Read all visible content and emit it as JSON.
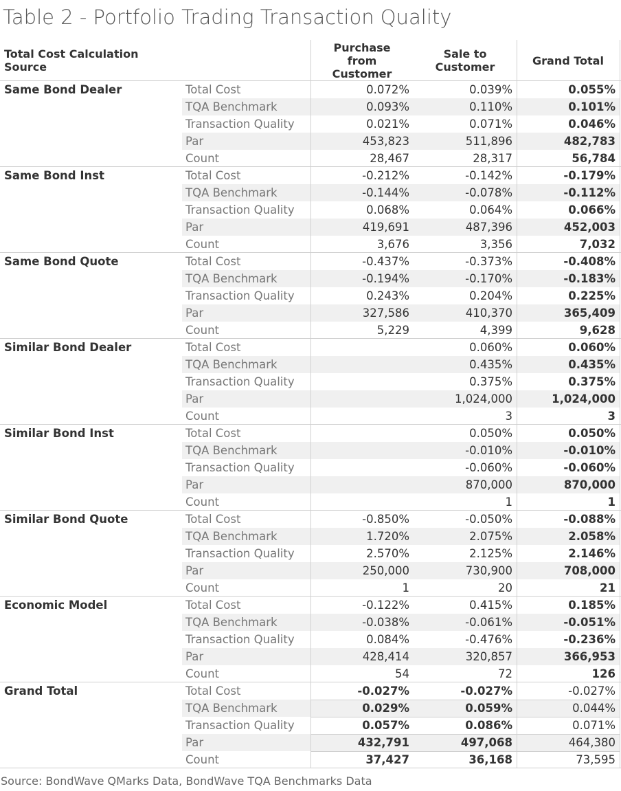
{
  "title": "Table 2 - Portfolio Trading Transaction Quality",
  "header": {
    "source_col": "Total Cost Calculation Source",
    "purchase": "Purchase from Customer",
    "sale": "Sale to Customer",
    "grand_total": "Grand Total"
  },
  "groups": [
    {
      "label": "Same Bond Dealer",
      "rows": [
        {
          "metric": "Total Cost",
          "purchase": "0.072%",
          "sale": "0.039%",
          "grand_total": "0.055%"
        },
        {
          "metric": "TQA Benchmark",
          "purchase": "0.093%",
          "sale": "0.110%",
          "grand_total": "0.101%"
        },
        {
          "metric": "Transaction Quality",
          "purchase": "0.021%",
          "sale": "0.071%",
          "grand_total": "0.046%"
        },
        {
          "metric": "Par",
          "purchase": "453,823",
          "sale": "511,896",
          "grand_total": "482,783"
        },
        {
          "metric": "Count",
          "purchase": "28,467",
          "sale": "28,317",
          "grand_total": "56,784"
        }
      ]
    },
    {
      "label": "Same Bond Inst",
      "rows": [
        {
          "metric": "Total Cost",
          "purchase": "-0.212%",
          "sale": "-0.142%",
          "grand_total": "-0.179%"
        },
        {
          "metric": "TQA Benchmark",
          "purchase": "-0.144%",
          "sale": "-0.078%",
          "grand_total": "-0.112%"
        },
        {
          "metric": "Transaction Quality",
          "purchase": "0.068%",
          "sale": "0.064%",
          "grand_total": "0.066%"
        },
        {
          "metric": "Par",
          "purchase": "419,691",
          "sale": "487,396",
          "grand_total": "452,003"
        },
        {
          "metric": "Count",
          "purchase": "3,676",
          "sale": "3,356",
          "grand_total": "7,032"
        }
      ]
    },
    {
      "label": "Same Bond Quote",
      "rows": [
        {
          "metric": "Total Cost",
          "purchase": "-0.437%",
          "sale": "-0.373%",
          "grand_total": "-0.408%"
        },
        {
          "metric": "TQA Benchmark",
          "purchase": "-0.194%",
          "sale": "-0.170%",
          "grand_total": "-0.183%"
        },
        {
          "metric": "Transaction Quality",
          "purchase": "0.243%",
          "sale": "0.204%",
          "grand_total": "0.225%"
        },
        {
          "metric": "Par",
          "purchase": "327,586",
          "sale": "410,370",
          "grand_total": "365,409"
        },
        {
          "metric": "Count",
          "purchase": "5,229",
          "sale": "4,399",
          "grand_total": "9,628"
        }
      ]
    },
    {
      "label": "Similar Bond Dealer",
      "rows": [
        {
          "metric": "Total Cost",
          "purchase": null,
          "sale": "0.060%",
          "grand_total": "0.060%"
        },
        {
          "metric": "TQA Benchmark",
          "purchase": null,
          "sale": "0.435%",
          "grand_total": "0.435%"
        },
        {
          "metric": "Transaction Quality",
          "purchase": null,
          "sale": "0.375%",
          "grand_total": "0.375%"
        },
        {
          "metric": "Par",
          "purchase": null,
          "sale": "1,024,000",
          "grand_total": "1,024,000"
        },
        {
          "metric": "Count",
          "purchase": null,
          "sale": "3",
          "grand_total": "3"
        }
      ]
    },
    {
      "label": "Similar Bond Inst",
      "rows": [
        {
          "metric": "Total Cost",
          "purchase": null,
          "sale": "0.050%",
          "grand_total": "0.050%"
        },
        {
          "metric": "TQA Benchmark",
          "purchase": null,
          "sale": "-0.010%",
          "grand_total": "-0.010%"
        },
        {
          "metric": "Transaction Quality",
          "purchase": null,
          "sale": "-0.060%",
          "grand_total": "-0.060%"
        },
        {
          "metric": "Par",
          "purchase": null,
          "sale": "870,000",
          "grand_total": "870,000"
        },
        {
          "metric": "Count",
          "purchase": null,
          "sale": "1",
          "grand_total": "1"
        }
      ]
    },
    {
      "label": "Similar Bond Quote",
      "rows": [
        {
          "metric": "Total Cost",
          "purchase": "-0.850%",
          "sale": "-0.050%",
          "grand_total": "-0.088%"
        },
        {
          "metric": "TQA Benchmark",
          "purchase": "1.720%",
          "sale": "2.075%",
          "grand_total": "2.058%"
        },
        {
          "metric": "Transaction Quality",
          "purchase": "2.570%",
          "sale": "2.125%",
          "grand_total": "2.146%"
        },
        {
          "metric": "Par",
          "purchase": "250,000",
          "sale": "730,900",
          "grand_total": "708,000"
        },
        {
          "metric": "Count",
          "purchase": "1",
          "sale": "20",
          "grand_total": "21"
        }
      ]
    },
    {
      "label": "Economic Model",
      "rows": [
        {
          "metric": "Total Cost",
          "purchase": "-0.122%",
          "sale": "0.415%",
          "grand_total": "0.185%"
        },
        {
          "metric": "TQA Benchmark",
          "purchase": "-0.038%",
          "sale": "-0.061%",
          "grand_total": "-0.051%"
        },
        {
          "metric": "Transaction Quality",
          "purchase": "0.084%",
          "sale": "-0.476%",
          "grand_total": "-0.236%"
        },
        {
          "metric": "Par",
          "purchase": "428,414",
          "sale": "320,857",
          "grand_total": "366,953"
        },
        {
          "metric": "Count",
          "purchase": "54",
          "sale": "72",
          "grand_total": "126"
        }
      ]
    },
    {
      "label": "Grand Total",
      "rows": [
        {
          "metric": "Total Cost",
          "purchase": "-0.027%",
          "sale": "-0.027%",
          "grand_total": "-0.027%"
        },
        {
          "metric": "TQA Benchmark",
          "purchase": "0.029%",
          "sale": "0.059%",
          "grand_total": "0.044%"
        },
        {
          "metric": "Transaction Quality",
          "purchase": "0.057%",
          "sale": "0.086%",
          "grand_total": "0.071%"
        },
        {
          "metric": "Par",
          "purchase": "432,791",
          "sale": "497,068",
          "grand_total": "464,380"
        },
        {
          "metric": "Count",
          "purchase": "37,427",
          "sale": "36,168",
          "grand_total": "73,595"
        }
      ]
    }
  ],
  "source": "Source: BondWave QMarks Data, BondWave TQA Benchmarks Data"
}
